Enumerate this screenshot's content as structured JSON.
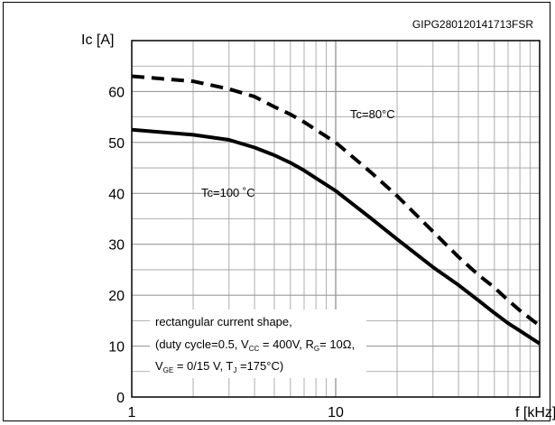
{
  "chart_data": {
    "type": "line",
    "code": "GIPG280120141713FSR",
    "ylabel": "Ic [A]",
    "xlabel": "f [kHz]",
    "x_scale": "log",
    "xlim": [
      1,
      100
    ],
    "ylim": [
      0,
      70
    ],
    "x_ticks": [
      {
        "value": 1,
        "label": "1"
      },
      {
        "value": 10,
        "label": "10"
      }
    ],
    "y_ticks": [
      0,
      10,
      20,
      30,
      40,
      50,
      60
    ],
    "grid": true,
    "series": [
      {
        "name": "Tc=80°C",
        "label_text": "Tc=80°C",
        "style": "dashed",
        "x": [
          1,
          2,
          3,
          4,
          5,
          6,
          7,
          8,
          10,
          15,
          20,
          30,
          40,
          50,
          60,
          70,
          80,
          100
        ],
        "y": [
          63,
          62,
          60.5,
          59,
          57,
          55.5,
          54,
          52.5,
          50,
          44,
          39.5,
          32.5,
          27.5,
          24,
          21.5,
          19,
          17,
          14
        ]
      },
      {
        "name": "Tc=100 °C",
        "label_text": "Tc=100 ˚C",
        "style": "solid",
        "x": [
          1,
          2,
          3,
          4,
          5,
          6,
          7,
          8,
          10,
          15,
          20,
          30,
          40,
          50,
          60,
          70,
          80,
          100
        ],
        "y": [
          52.5,
          51.5,
          50.5,
          49,
          47.5,
          46,
          44.5,
          43,
          40.5,
          35,
          31,
          25.5,
          22,
          19,
          16.5,
          14.5,
          13,
          10.5
        ]
      }
    ],
    "annotation": {
      "line1": "rectangular current shape,",
      "line2": {
        "a": "(duty cycle=0.5, V",
        "a_sub": "CC",
        "b": " = 400V, R",
        "b_sub": "G",
        "c": "= 10Ω,"
      },
      "line3": {
        "a": "V",
        "a_sub": "GE",
        "b": " = 0/15 V, T",
        "b_sub": "J",
        "c": " =175°C)"
      }
    }
  }
}
